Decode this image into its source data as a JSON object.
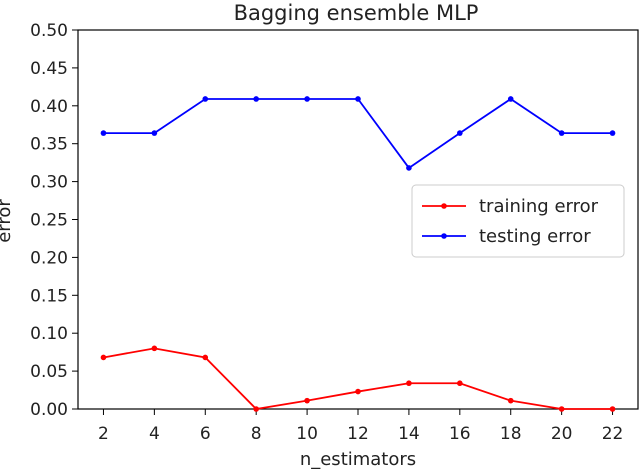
{
  "chart_data": {
    "type": "line",
    "title": "Bagging ensemble MLP",
    "xlabel": "n_estimators",
    "ylabel": "error",
    "x": [
      2,
      4,
      6,
      8,
      10,
      12,
      14,
      16,
      18,
      20,
      22
    ],
    "x_ticks": [
      "2",
      "4",
      "6",
      "8",
      "10",
      "12",
      "14",
      "16",
      "18",
      "20",
      "22"
    ],
    "y_ticks": [
      "0.00",
      "0.05",
      "0.10",
      "0.15",
      "0.20",
      "0.25",
      "0.30",
      "0.35",
      "0.40",
      "0.45",
      "0.50"
    ],
    "xlim": [
      1,
      23
    ],
    "ylim": [
      0.0,
      0.5
    ],
    "grid": false,
    "legend_position": "center-right",
    "series": [
      {
        "name": "training error",
        "color": "#ff0000",
        "values": [
          0.068,
          0.08,
          0.068,
          0.0,
          0.011,
          0.023,
          0.034,
          0.034,
          0.011,
          0.0,
          0.0
        ]
      },
      {
        "name": "testing error",
        "color": "#0000ff",
        "values": [
          0.364,
          0.364,
          0.409,
          0.409,
          0.409,
          0.409,
          0.318,
          0.364,
          0.409,
          0.364,
          0.364
        ]
      }
    ]
  }
}
